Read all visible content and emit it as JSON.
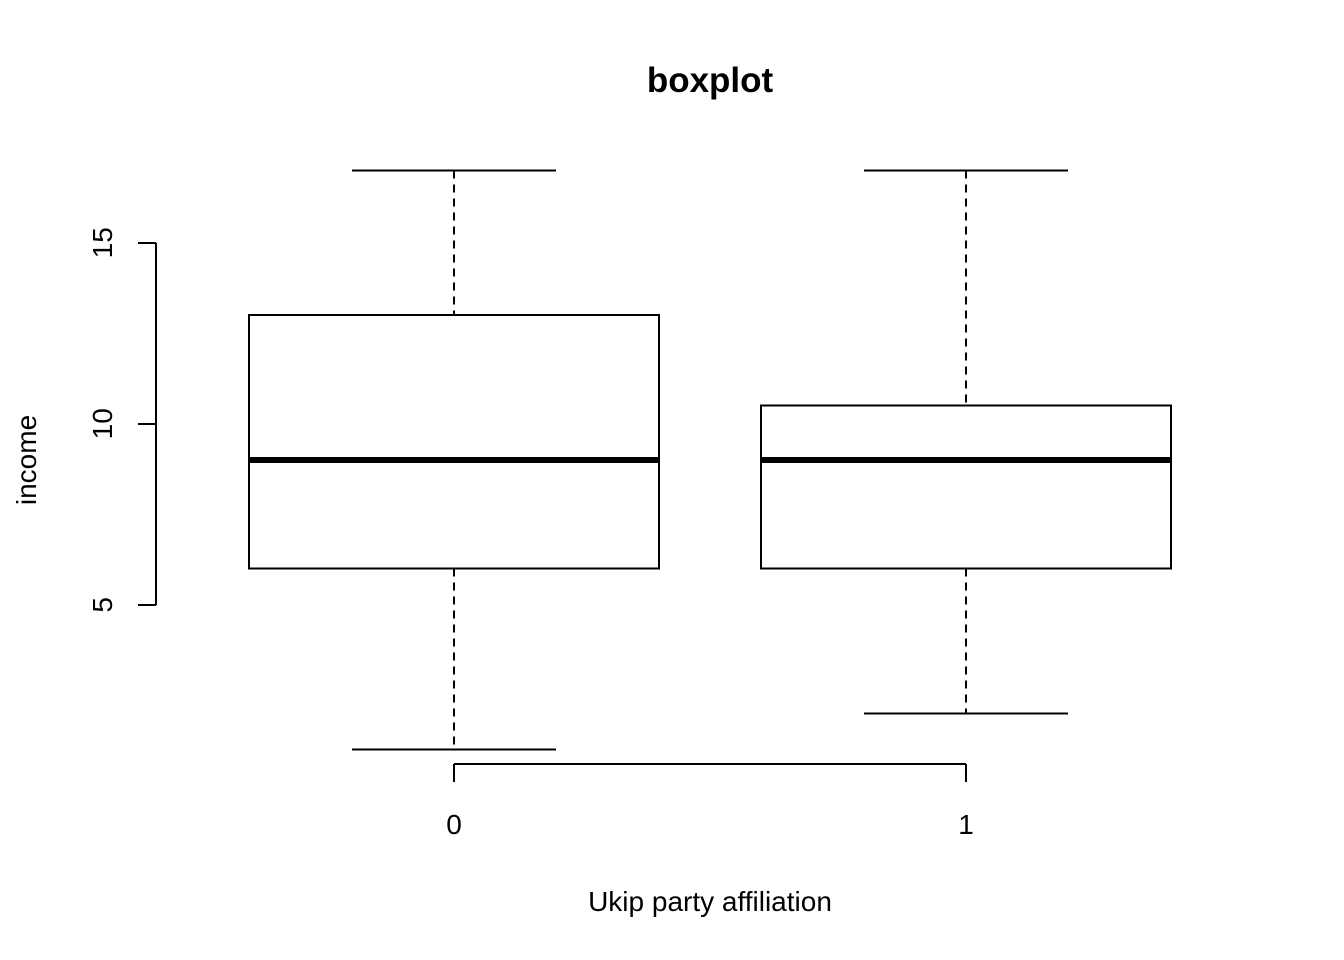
{
  "chart_data": {
    "type": "boxplot",
    "title": "boxplot",
    "xlabel": "Ukip party affiliation",
    "ylabel": "income",
    "categories": [
      "0",
      "1"
    ],
    "boxes": [
      {
        "category": "0",
        "whisker_low": 1,
        "q1": 6,
        "median": 9,
        "q3": 13,
        "whisker_high": 17
      },
      {
        "category": "1",
        "whisker_low": 2,
        "q1": 6,
        "median": 9,
        "q3": 10.5,
        "whisker_high": 17
      }
    ],
    "yticks": [
      5,
      10,
      15
    ],
    "ytick_labels": [
      "5",
      "10",
      "15"
    ],
    "ylim": [
      0.3,
      17.7
    ],
    "grid": false,
    "colors": {
      "stroke": "#000000",
      "fill": "#ffffff"
    }
  }
}
